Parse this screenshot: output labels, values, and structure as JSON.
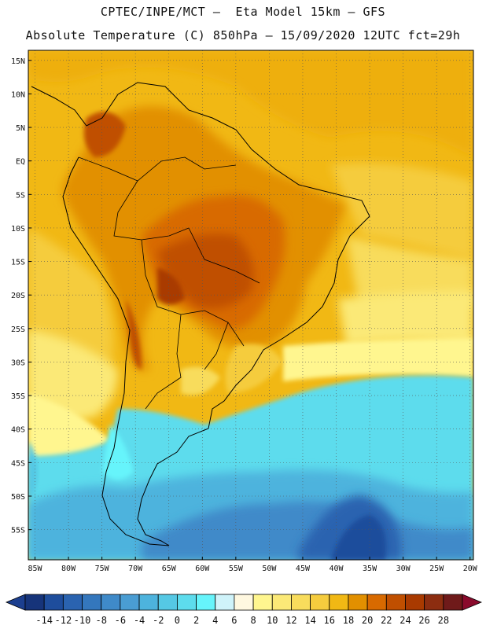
{
  "header": {
    "line1": "CPTEC/INPE/MCT –  Eta Model 15km – GFS",
    "line2": "Absolute Temperature (C) 850hPa – 15/09/2020 12UTC fct=29h"
  },
  "axes": {
    "lat_ticks": [
      "15N",
      "10N",
      "5N",
      "EQ",
      "5S",
      "10S",
      "15S",
      "20S",
      "25S",
      "30S",
      "35S",
      "40S",
      "45S",
      "50S",
      "55S"
    ],
    "lon_ticks": [
      "85W",
      "80W",
      "75W",
      "70W",
      "65W",
      "60W",
      "55W",
      "50W",
      "45W",
      "40W",
      "35W",
      "30W",
      "25W",
      "20W"
    ]
  },
  "colorbar": {
    "labels": [
      "-14",
      "-12",
      "-10",
      "-8",
      "-6",
      "-4",
      "-2",
      "0",
      "2",
      "4",
      "6",
      "8",
      "10",
      "12",
      "14",
      "16",
      "18",
      "20",
      "22",
      "24",
      "26",
      "28"
    ],
    "colors": [
      "#16347a",
      "#1e4d9c",
      "#2a63b0",
      "#3477bd",
      "#3f8ac9",
      "#4a9dd3",
      "#4db3dd",
      "#55c8e4",
      "#5ddced",
      "#66f4fb",
      "#cff3fa",
      "#fff8e0",
      "#fff68f",
      "#fbe977",
      "#f8dc5c",
      "#f5cc3e",
      "#f1b814",
      "#e29000",
      "#d86a00",
      "#c04f00",
      "#a93a00",
      "#8c2d10",
      "#6f1a1a",
      "#8a0a2c"
    ],
    "under_color": "#1c3f8f",
    "over_color": "#8a0a2c"
  }
}
